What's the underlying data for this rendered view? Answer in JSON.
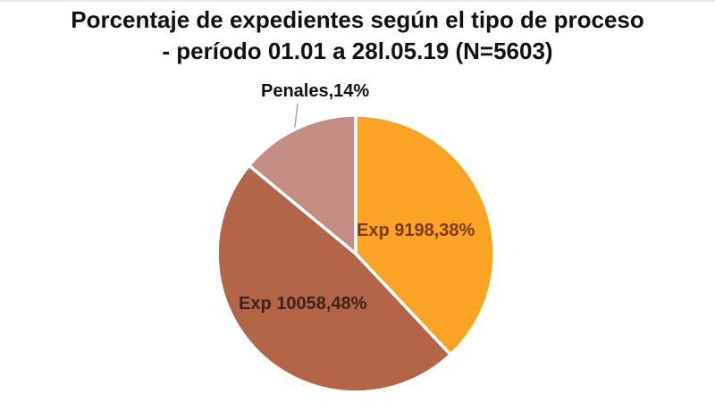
{
  "chart": {
    "title_line1": "Porcentaje de expedientes según el tipo de proceso",
    "title_line2": "- período 01.01 a 28l.05.19 (N=5603)",
    "title_color": "#111111",
    "background_color": "#FFFFFF"
  },
  "chart_data": {
    "type": "pie",
    "title": "Porcentaje de expedientes según el tipo de proceso - período 01.01 a 28l.05.19 (N=5603)",
    "start_angle_deg": 0,
    "direction": "clockwise",
    "separator_color": "#FFFFFF",
    "legend": "none",
    "slices": [
      {
        "name": "Exp 9198",
        "value": 38,
        "label": "Exp 9198,38%",
        "color": "#FAA324",
        "label_color": "#7C3A10"
      },
      {
        "name": "Exp 10058",
        "value": 48,
        "label": "Exp 10058,48%",
        "color": "#B36549",
        "label_color": "#43201A"
      },
      {
        "name": "Penales",
        "value": 14,
        "label": "Penales,14%",
        "color": "#C48D83",
        "label_color": "#111111"
      }
    ],
    "leader_line_color": "#A7A7A7"
  }
}
